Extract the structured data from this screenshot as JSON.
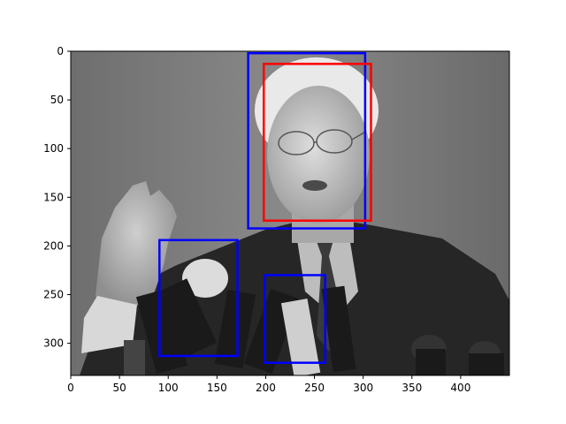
{
  "chart_data": {
    "type": "image",
    "title": "",
    "xlabel": "",
    "ylabel": "",
    "image": {
      "depicts": "grayscale photo of a man with white hair and glasses speaking at a press conference into many microphones",
      "width": 450,
      "height": 333
    },
    "xlim": [
      0,
      450
    ],
    "ylim": [
      333,
      0
    ],
    "y_inverted": true,
    "xticks": [
      0,
      50,
      100,
      150,
      200,
      250,
      300,
      350,
      400
    ],
    "yticks": [
      0,
      50,
      100,
      150,
      200,
      250,
      300
    ],
    "grid": false,
    "boxes": [
      {
        "color": "#0000ff",
        "x0": 182,
        "y0": 2,
        "x1": 302,
        "y1": 182
      },
      {
        "color": "#ff0000",
        "x0": 198,
        "y0": 13,
        "x1": 308,
        "y1": 174
      },
      {
        "color": "#0000ff",
        "x0": 91,
        "y0": 194,
        "x1": 171,
        "y1": 313
      },
      {
        "color": "#0000ff",
        "x0": 199,
        "y0": 230,
        "x1": 261,
        "y1": 320
      }
    ]
  }
}
